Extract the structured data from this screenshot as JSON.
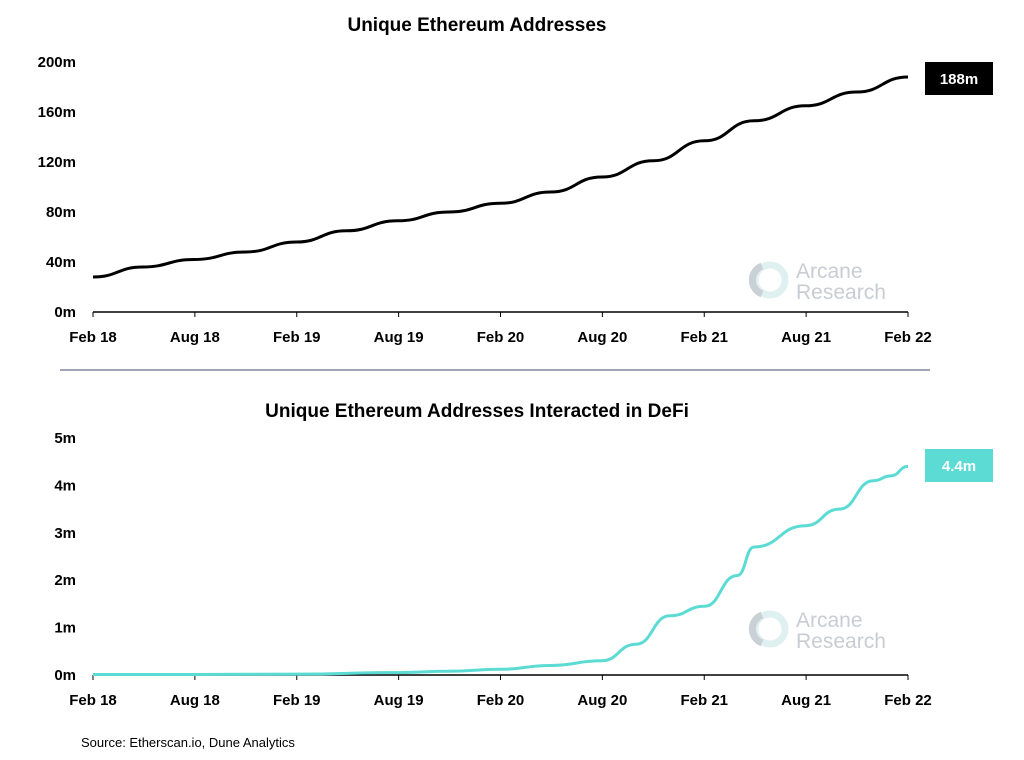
{
  "source": "Source: Etherscan.io, Dune Analytics",
  "watermark": {
    "line1": "Arcane",
    "line2": "Research",
    "name": "arcane-research-logo"
  },
  "colors": {
    "top_series": "#000000",
    "bottom_series": "#5cdbd4",
    "axis": "#000000",
    "divider": "#6b6b8a"
  },
  "chart_data": [
    {
      "type": "line",
      "title": "Unique Ethereum Addresses",
      "xlabel": "",
      "ylabel": "",
      "x_ticks": [
        "Feb 18",
        "Aug 18",
        "Feb 19",
        "Aug 19",
        "Feb 20",
        "Aug 20",
        "Feb 21",
        "Aug 21",
        "Feb 22"
      ],
      "y_ticks": [
        "0m",
        "40m",
        "80m",
        "120m",
        "160m",
        "200m"
      ],
      "ylim": [
        0,
        200
      ],
      "unit": "m",
      "grid": false,
      "end_label": "188m",
      "series": [
        {
          "color": "#000000",
          "x": [
            "2018-02",
            "2018-05",
            "2018-08",
            "2018-11",
            "2019-02",
            "2019-05",
            "2019-08",
            "2019-11",
            "2020-02",
            "2020-05",
            "2020-08",
            "2020-11",
            "2021-02",
            "2021-05",
            "2021-08",
            "2021-11",
            "2022-02"
          ],
          "values": [
            28,
            36,
            42,
            48,
            56,
            65,
            73,
            80,
            87,
            96,
            108,
            121,
            137,
            153,
            165,
            176,
            188
          ]
        }
      ]
    },
    {
      "type": "line",
      "title": "Unique Ethereum Addresses Interacted in DeFi",
      "xlabel": "",
      "ylabel": "",
      "x_ticks": [
        "Feb 18",
        "Aug 18",
        "Feb 19",
        "Aug 19",
        "Feb 20",
        "Aug 20",
        "Feb 21",
        "Aug 21",
        "Feb 22"
      ],
      "y_ticks": [
        "0m",
        "1m",
        "2m",
        "3m",
        "4m",
        "5m"
      ],
      "ylim": [
        0,
        5
      ],
      "unit": "m",
      "grid": false,
      "end_label": "4.4m",
      "series": [
        {
          "color": "#5cdbd4",
          "x": [
            "2018-02",
            "2018-08",
            "2019-02",
            "2019-08",
            "2019-11",
            "2020-02",
            "2020-05",
            "2020-08",
            "2020-10",
            "2020-12",
            "2021-02",
            "2021-04",
            "2021-05",
            "2021-08",
            "2021-10",
            "2021-12",
            "2022-01",
            "2022-02"
          ],
          "values": [
            0.01,
            0.01,
            0.02,
            0.05,
            0.08,
            0.12,
            0.2,
            0.3,
            0.65,
            1.25,
            1.45,
            2.1,
            2.7,
            3.15,
            3.5,
            4.1,
            4.2,
            4.4
          ]
        }
      ]
    }
  ]
}
